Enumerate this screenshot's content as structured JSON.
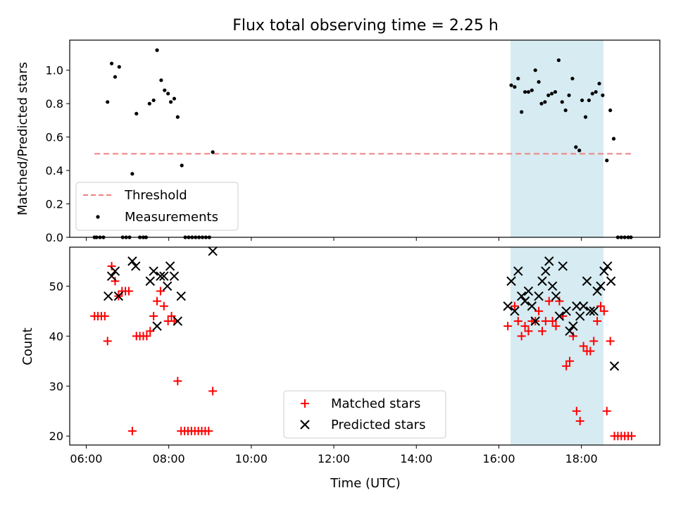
{
  "title": "Flux total observing time = 2.25 h",
  "colors": {
    "threshold": "#f08080",
    "measurement": "#000000",
    "matched": "#ff0000",
    "predicted": "#000000",
    "highlight": "#add8e6"
  },
  "chart_data": [
    {
      "type": "scatter",
      "panel": "top",
      "ylabel": "Matched/Predicted stars",
      "xlim": [
        "05:36",
        "19:54"
      ],
      "ylim": [
        0,
        1.18
      ],
      "yticks": [
        "0.0",
        "0.2",
        "0.4",
        "0.6",
        "0.8",
        "1.0"
      ],
      "highlight_span": [
        "16:17",
        "18:32"
      ],
      "legend": {
        "position": "lower-left",
        "entries": [
          "Threshold",
          "Measurements"
        ]
      },
      "threshold": {
        "name": "Threshold",
        "value": 0.5,
        "x_range": [
          "06:12",
          "19:12"
        ]
      },
      "series": [
        {
          "name": "Measurements",
          "points": [
            [
              "06:12",
              0
            ],
            [
              "06:15",
              0
            ],
            [
              "06:20",
              0
            ],
            [
              "06:25",
              0
            ],
            [
              "06:31",
              0.81
            ],
            [
              "06:37",
              1.04
            ],
            [
              "06:42",
              0.96
            ],
            [
              "06:48",
              1.02
            ],
            [
              "06:53",
              0
            ],
            [
              "06:58",
              0
            ],
            [
              "07:03",
              0
            ],
            [
              "07:07",
              0.38
            ],
            [
              "07:13",
              0.74
            ],
            [
              "07:18",
              0
            ],
            [
              "07:23",
              0
            ],
            [
              "07:27",
              0
            ],
            [
              "07:32",
              0.8
            ],
            [
              "07:38",
              0.82
            ],
            [
              "07:43",
              1.12
            ],
            [
              "07:49",
              0.94
            ],
            [
              "07:54",
              0.88
            ],
            [
              "07:59",
              0.86
            ],
            [
              "08:03",
              0.81
            ],
            [
              "08:08",
              0.83
            ],
            [
              "08:13",
              0.72
            ],
            [
              "08:19",
              0.43
            ],
            [
              "08:24",
              0
            ],
            [
              "08:29",
              0
            ],
            [
              "08:34",
              0
            ],
            [
              "08:39",
              0
            ],
            [
              "08:44",
              0
            ],
            [
              "08:49",
              0
            ],
            [
              "08:54",
              0
            ],
            [
              "08:59",
              0
            ],
            [
              "09:04",
              0.51
            ],
            [
              "16:18",
              0.91
            ],
            [
              "16:23",
              0.9
            ],
            [
              "16:28",
              0.95
            ],
            [
              "16:33",
              0.75
            ],
            [
              "16:38",
              0.87
            ],
            [
              "16:43",
              0.87
            ],
            [
              "16:48",
              0.88
            ],
            [
              "16:53",
              1.0
            ],
            [
              "16:58",
              0.93
            ],
            [
              "17:02",
              0.8
            ],
            [
              "17:07",
              0.81
            ],
            [
              "17:12",
              0.85
            ],
            [
              "17:17",
              0.86
            ],
            [
              "17:22",
              0.87
            ],
            [
              "17:27",
              1.06
            ],
            [
              "17:32",
              0.81
            ],
            [
              "17:37",
              0.76
            ],
            [
              "17:42",
              0.85
            ],
            [
              "17:47",
              0.95
            ],
            [
              "17:52",
              0.54
            ],
            [
              "17:57",
              0.52
            ],
            [
              "18:01",
              0.82
            ],
            [
              "18:06",
              0.72
            ],
            [
              "18:11",
              0.82
            ],
            [
              "18:16",
              0.86
            ],
            [
              "18:21",
              0.87
            ],
            [
              "18:26",
              0.92
            ],
            [
              "18:31",
              0.85
            ],
            [
              "18:37",
              0.46
            ],
            [
              "18:42",
              0.76
            ],
            [
              "18:47",
              0.59
            ],
            [
              "18:53",
              0
            ],
            [
              "18:58",
              0
            ],
            [
              "19:03",
              0
            ],
            [
              "19:08",
              0
            ],
            [
              "19:12",
              0
            ]
          ]
        }
      ]
    },
    {
      "type": "scatter",
      "panel": "bottom",
      "xlabel": "Time (UTC)",
      "ylabel": "Count",
      "xlim": [
        "05:36",
        "19:54"
      ],
      "ylim": [
        18.2,
        57.8
      ],
      "xticks": [
        "06:00",
        "08:00",
        "10:00",
        "12:00",
        "14:00",
        "16:00",
        "18:00"
      ],
      "yticks": [
        "20",
        "30",
        "40",
        "50"
      ],
      "highlight_span": [
        "16:17",
        "18:32"
      ],
      "legend": {
        "position": "lower-center",
        "entries": [
          "Matched stars",
          "Predicted stars"
        ]
      },
      "series": [
        {
          "name": "Matched stars",
          "marker": "plus",
          "points": [
            [
              "06:12",
              44
            ],
            [
              "06:17",
              44
            ],
            [
              "06:22",
              44
            ],
            [
              "06:27",
              44
            ],
            [
              "06:31",
              39
            ],
            [
              "06:37",
              54
            ],
            [
              "06:42",
              51
            ],
            [
              "06:47",
              48
            ],
            [
              "06:52",
              49
            ],
            [
              "06:57",
              49
            ],
            [
              "07:02",
              49
            ],
            [
              "07:07",
              21
            ],
            [
              "07:13",
              40
            ],
            [
              "07:18",
              40
            ],
            [
              "07:23",
              40
            ],
            [
              "07:28",
              40
            ],
            [
              "07:33",
              41
            ],
            [
              "07:38",
              44
            ],
            [
              "07:43",
              47
            ],
            [
              "07:48",
              49
            ],
            [
              "07:53",
              46
            ],
            [
              "07:59",
              43
            ],
            [
              "08:04",
              44
            ],
            [
              "08:08",
              43
            ],
            [
              "08:13",
              31
            ],
            [
              "08:18",
              21
            ],
            [
              "08:23",
              21
            ],
            [
              "08:28",
              21
            ],
            [
              "08:33",
              21
            ],
            [
              "08:38",
              21
            ],
            [
              "08:43",
              21
            ],
            [
              "08:48",
              21
            ],
            [
              "08:53",
              21
            ],
            [
              "08:58",
              21
            ],
            [
              "09:04",
              29
            ],
            [
              "16:13",
              42
            ],
            [
              "16:23",
              46
            ],
            [
              "16:28",
              43
            ],
            [
              "16:33",
              40
            ],
            [
              "16:38",
              42
            ],
            [
              "16:43",
              41
            ],
            [
              "16:48",
              43
            ],
            [
              "16:53",
              43
            ],
            [
              "16:58",
              45
            ],
            [
              "17:03",
              41
            ],
            [
              "17:08",
              43
            ],
            [
              "17:13",
              47
            ],
            [
              "17:18",
              43
            ],
            [
              "17:23",
              42
            ],
            [
              "17:28",
              47
            ],
            [
              "17:33",
              44
            ],
            [
              "17:38",
              34
            ],
            [
              "17:43",
              35
            ],
            [
              "17:48",
              40
            ],
            [
              "17:53",
              25
            ],
            [
              "17:58",
              23
            ],
            [
              "18:03",
              38
            ],
            [
              "18:08",
              37
            ],
            [
              "18:13",
              37
            ],
            [
              "18:18",
              39
            ],
            [
              "18:23",
              43
            ],
            [
              "18:28",
              46
            ],
            [
              "18:33",
              45
            ],
            [
              "18:37",
              25
            ],
            [
              "18:42",
              39
            ],
            [
              "18:48",
              20
            ],
            [
              "18:53",
              20
            ],
            [
              "18:58",
              20
            ],
            [
              "19:03",
              20
            ],
            [
              "19:08",
              20
            ],
            [
              "19:13",
              20
            ]
          ]
        },
        {
          "name": "Predicted stars",
          "marker": "x",
          "points": [
            [
              "06:32",
              48
            ],
            [
              "06:37",
              52
            ],
            [
              "06:42",
              53
            ],
            [
              "06:47",
              48
            ],
            [
              "07:07",
              55
            ],
            [
              "07:12",
              54
            ],
            [
              "07:33",
              51
            ],
            [
              "07:38",
              53
            ],
            [
              "07:43",
              42
            ],
            [
              "07:48",
              52
            ],
            [
              "07:53",
              52
            ],
            [
              "07:58",
              50
            ],
            [
              "08:02",
              54
            ],
            [
              "08:08",
              52
            ],
            [
              "08:13",
              43
            ],
            [
              "08:18",
              48
            ],
            [
              "09:04",
              57
            ],
            [
              "16:13",
              46
            ],
            [
              "16:18",
              51
            ],
            [
              "16:23",
              45
            ],
            [
              "16:28",
              53
            ],
            [
              "16:33",
              48
            ],
            [
              "16:38",
              47
            ],
            [
              "16:43",
              49
            ],
            [
              "16:48",
              46
            ],
            [
              "16:53",
              43
            ],
            [
              "16:58",
              48
            ],
            [
              "17:03",
              51
            ],
            [
              "17:08",
              53
            ],
            [
              "17:13",
              55
            ],
            [
              "17:18",
              50
            ],
            [
              "17:23",
              48
            ],
            [
              "17:28",
              44
            ],
            [
              "17:33",
              54
            ],
            [
              "17:38",
              45
            ],
            [
              "17:43",
              41
            ],
            [
              "17:48",
              42
            ],
            [
              "17:53",
              46
            ],
            [
              "17:58",
              44
            ],
            [
              "18:03",
              46
            ],
            [
              "18:08",
              51
            ],
            [
              "18:13",
              45
            ],
            [
              "18:18",
              45
            ],
            [
              "18:23",
              49
            ],
            [
              "18:28",
              50
            ],
            [
              "18:33",
              53
            ],
            [
              "18:38",
              54
            ],
            [
              "18:43",
              51
            ],
            [
              "18:48",
              34
            ]
          ]
        }
      ]
    }
  ]
}
